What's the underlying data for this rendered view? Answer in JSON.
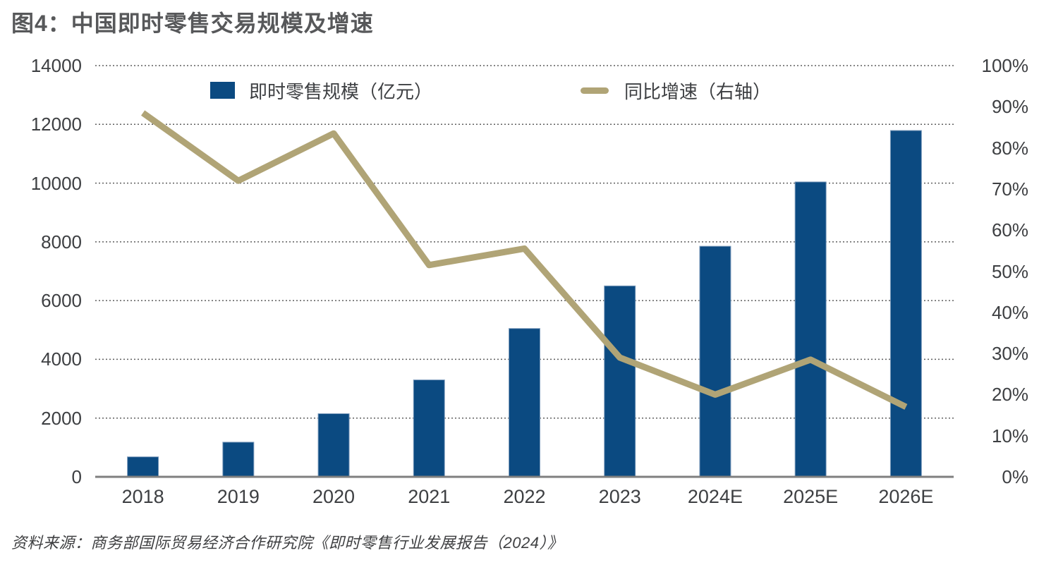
{
  "header": {
    "title": "图4：中国即时零售交易规模及增速"
  },
  "legend": {
    "bars_label": "即时零售规模（亿元）",
    "line_label": "同比增速（右轴）"
  },
  "footer": {
    "source": "资料来源：商务部国际贸易经济合作研究院《即时零售行业发展报告（2024）》"
  },
  "colors": {
    "bar": "#0b4a81",
    "bar_edge": "#7f9dbd",
    "line": "#b0a476",
    "grid_dots": "#5f5f5f",
    "axis_line": "#7f7f7f",
    "tick_text": "#3d3f42",
    "title_text": "#57585a"
  },
  "chart_data": {
    "type": "bar",
    "subtype": "bar-line-combo",
    "title": "图4：中国即时零售交易规模及增速",
    "categories": [
      "2018",
      "2019",
      "2020",
      "2021",
      "2022",
      "2023",
      "2024E",
      "2025E",
      "2026E"
    ],
    "series": [
      {
        "name": "即时零售规模（亿元）",
        "type": "bar",
        "axis": "left",
        "color": "#0b4a81",
        "values": [
          680,
          1180,
          2150,
          3300,
          5050,
          6500,
          7850,
          10040,
          11790
        ]
      },
      {
        "name": "同比增速（右轴）",
        "type": "line",
        "axis": "right",
        "color": "#b0a476",
        "values": [
          88.5,
          72,
          83.5,
          51.5,
          55.5,
          29,
          20,
          28.5,
          17
        ]
      }
    ],
    "y_left": {
      "min": 0,
      "max": 14000,
      "step": 2000
    },
    "y_right": {
      "min": 0,
      "max": 100,
      "step": 10,
      "unit": "%"
    },
    "grid": "horizontal-dotted",
    "legend_position": "top"
  }
}
